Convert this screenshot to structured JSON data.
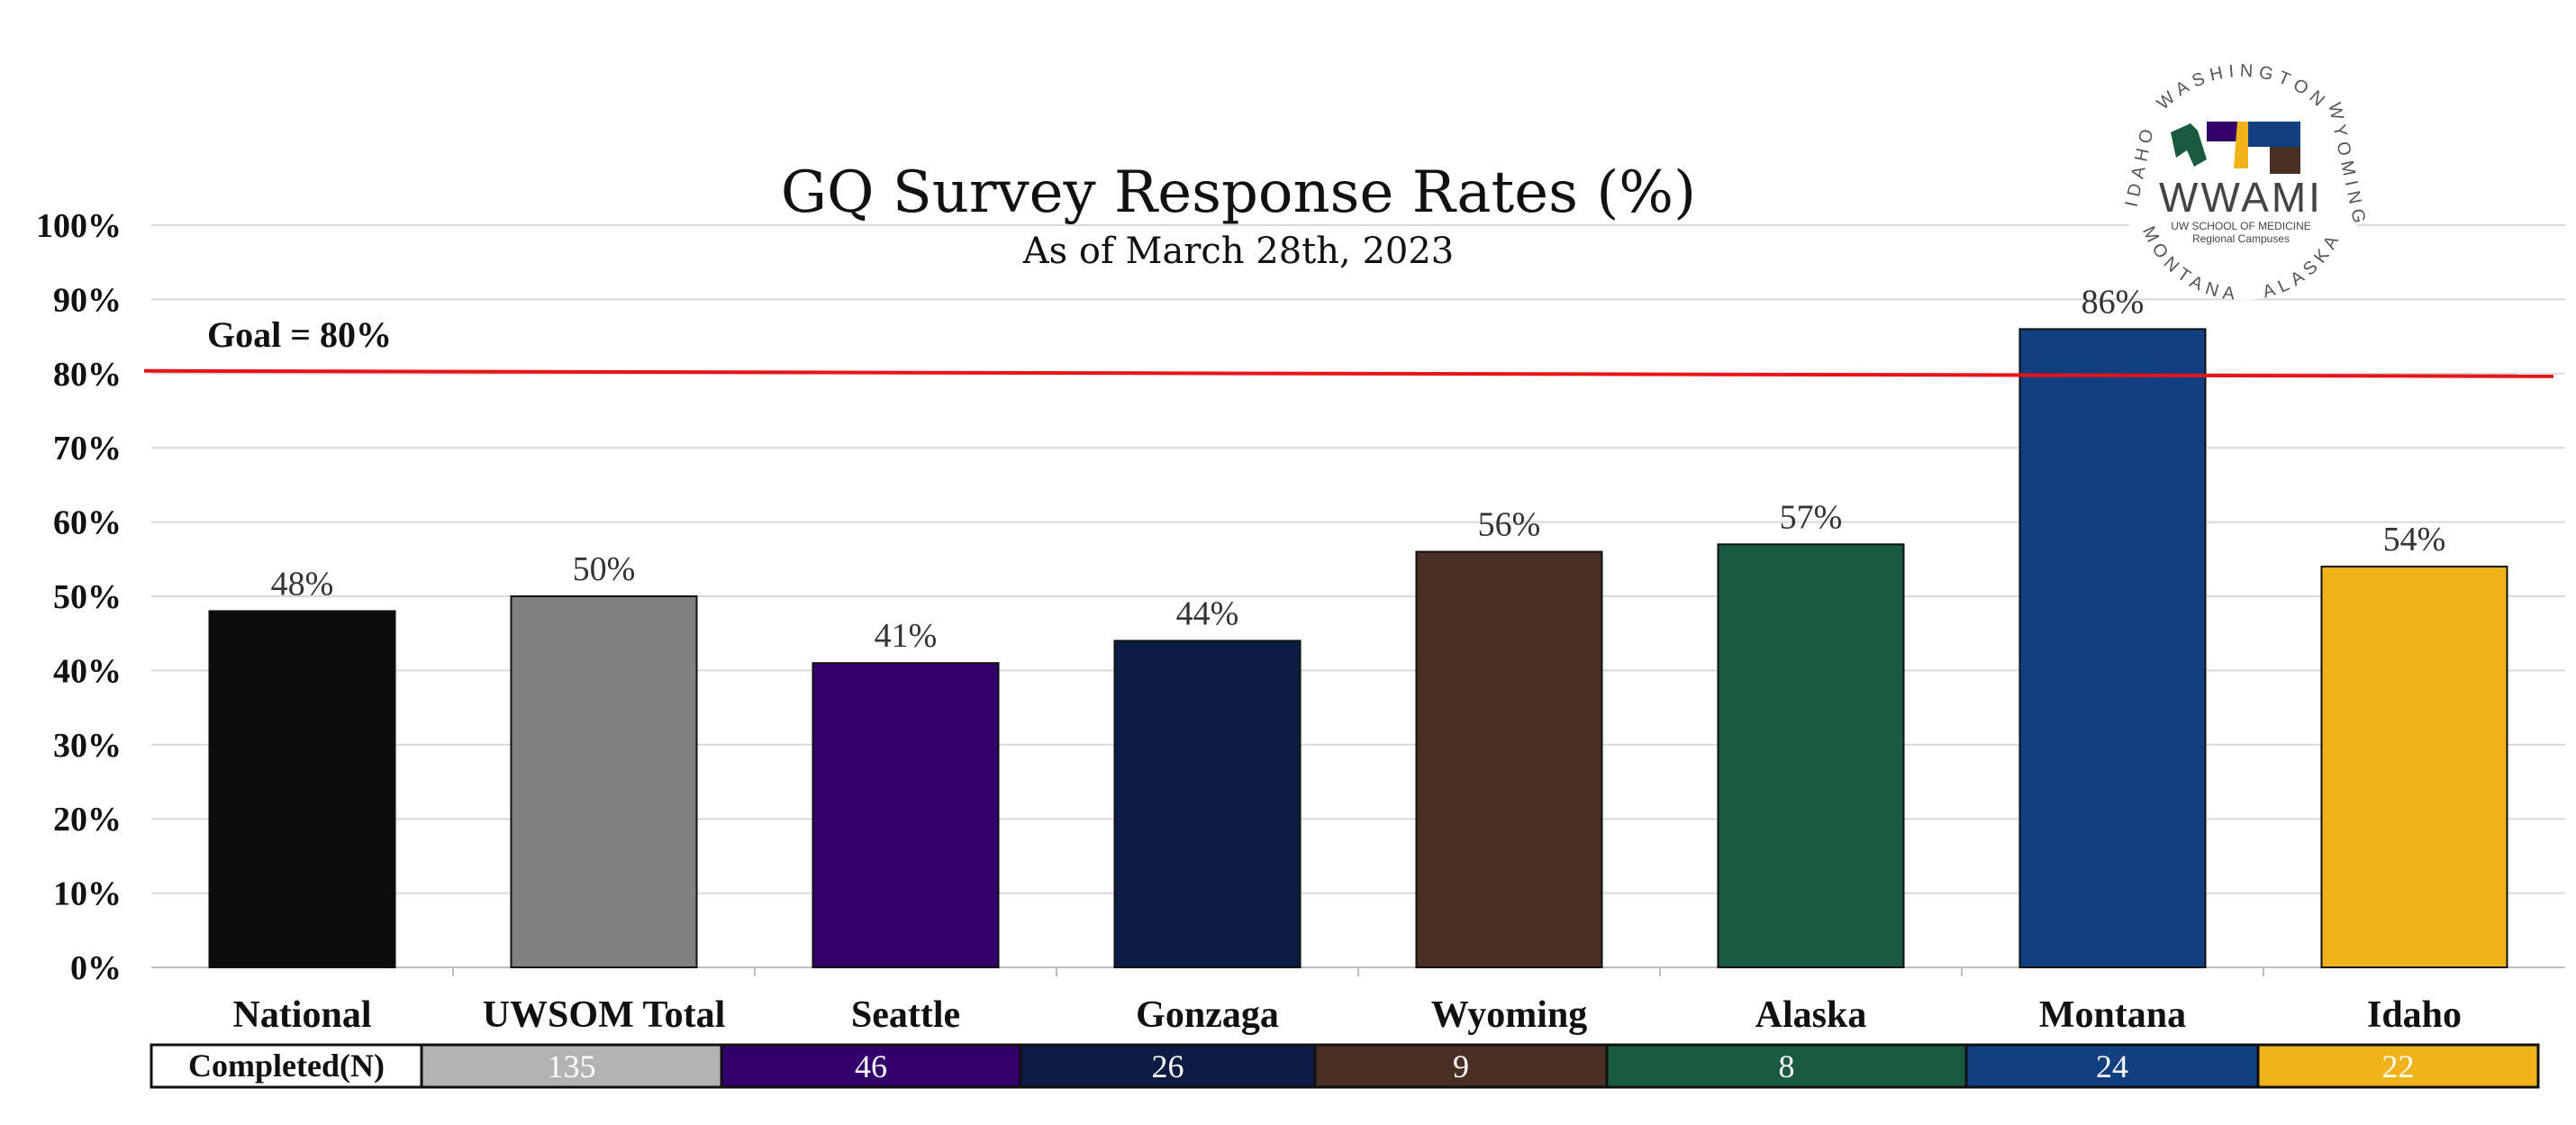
{
  "chart_data": {
    "type": "bar",
    "title": "GQ Survey Response Rates (%)",
    "subtitle": "As of March 28th, 2023",
    "categories": [
      "National",
      "UWSOM Total",
      "Seattle",
      "Gonzaga",
      "Wyoming",
      "Alaska",
      "Montana",
      "Idaho"
    ],
    "values": [
      48,
      50,
      41,
      44,
      56,
      57,
      86,
      54
    ],
    "value_labels": [
      "48%",
      "50%",
      "41%",
      "44%",
      "56%",
      "57%",
      "86%",
      "54%"
    ],
    "colors": [
      "#0d0d0d",
      "#808080",
      "#33006b",
      "#0c1c44",
      "#4a2f24",
      "#1a5a40",
      "#123f80",
      "#f0b31a"
    ],
    "ylim": [
      0,
      100
    ],
    "yticks": [
      0,
      10,
      20,
      30,
      40,
      50,
      60,
      70,
      80,
      90,
      100
    ],
    "ytick_labels": [
      "0%",
      "10%",
      "20%",
      "30%",
      "40%",
      "50%",
      "60%",
      "70%",
      "80%",
      "90%",
      "100%"
    ],
    "grid": true,
    "goal": {
      "value": 80,
      "label": "Goal = 80%",
      "color": "#e8141a"
    },
    "completed_table": {
      "header": "Completed(N)",
      "values": [
        "135",
        "46",
        "26",
        "9",
        "8",
        "24",
        "22"
      ],
      "fills": [
        "#b3b3b3",
        "#33006b",
        "#0c1c44",
        "#4a2f24",
        "#1a5a40",
        "#123f80",
        "#f0b31a"
      ]
    }
  },
  "logo": {
    "ring_top": "WASHINGTON",
    "ring_left": "IDAHO",
    "ring_right": "WYOMING",
    "ring_bottom_left": "MONTANA",
    "ring_bottom_right": "ALASKA",
    "wordmark": "WWAMI",
    "sub1": "UW SCHOOL OF MEDICINE",
    "sub2": "Regional Campuses"
  }
}
